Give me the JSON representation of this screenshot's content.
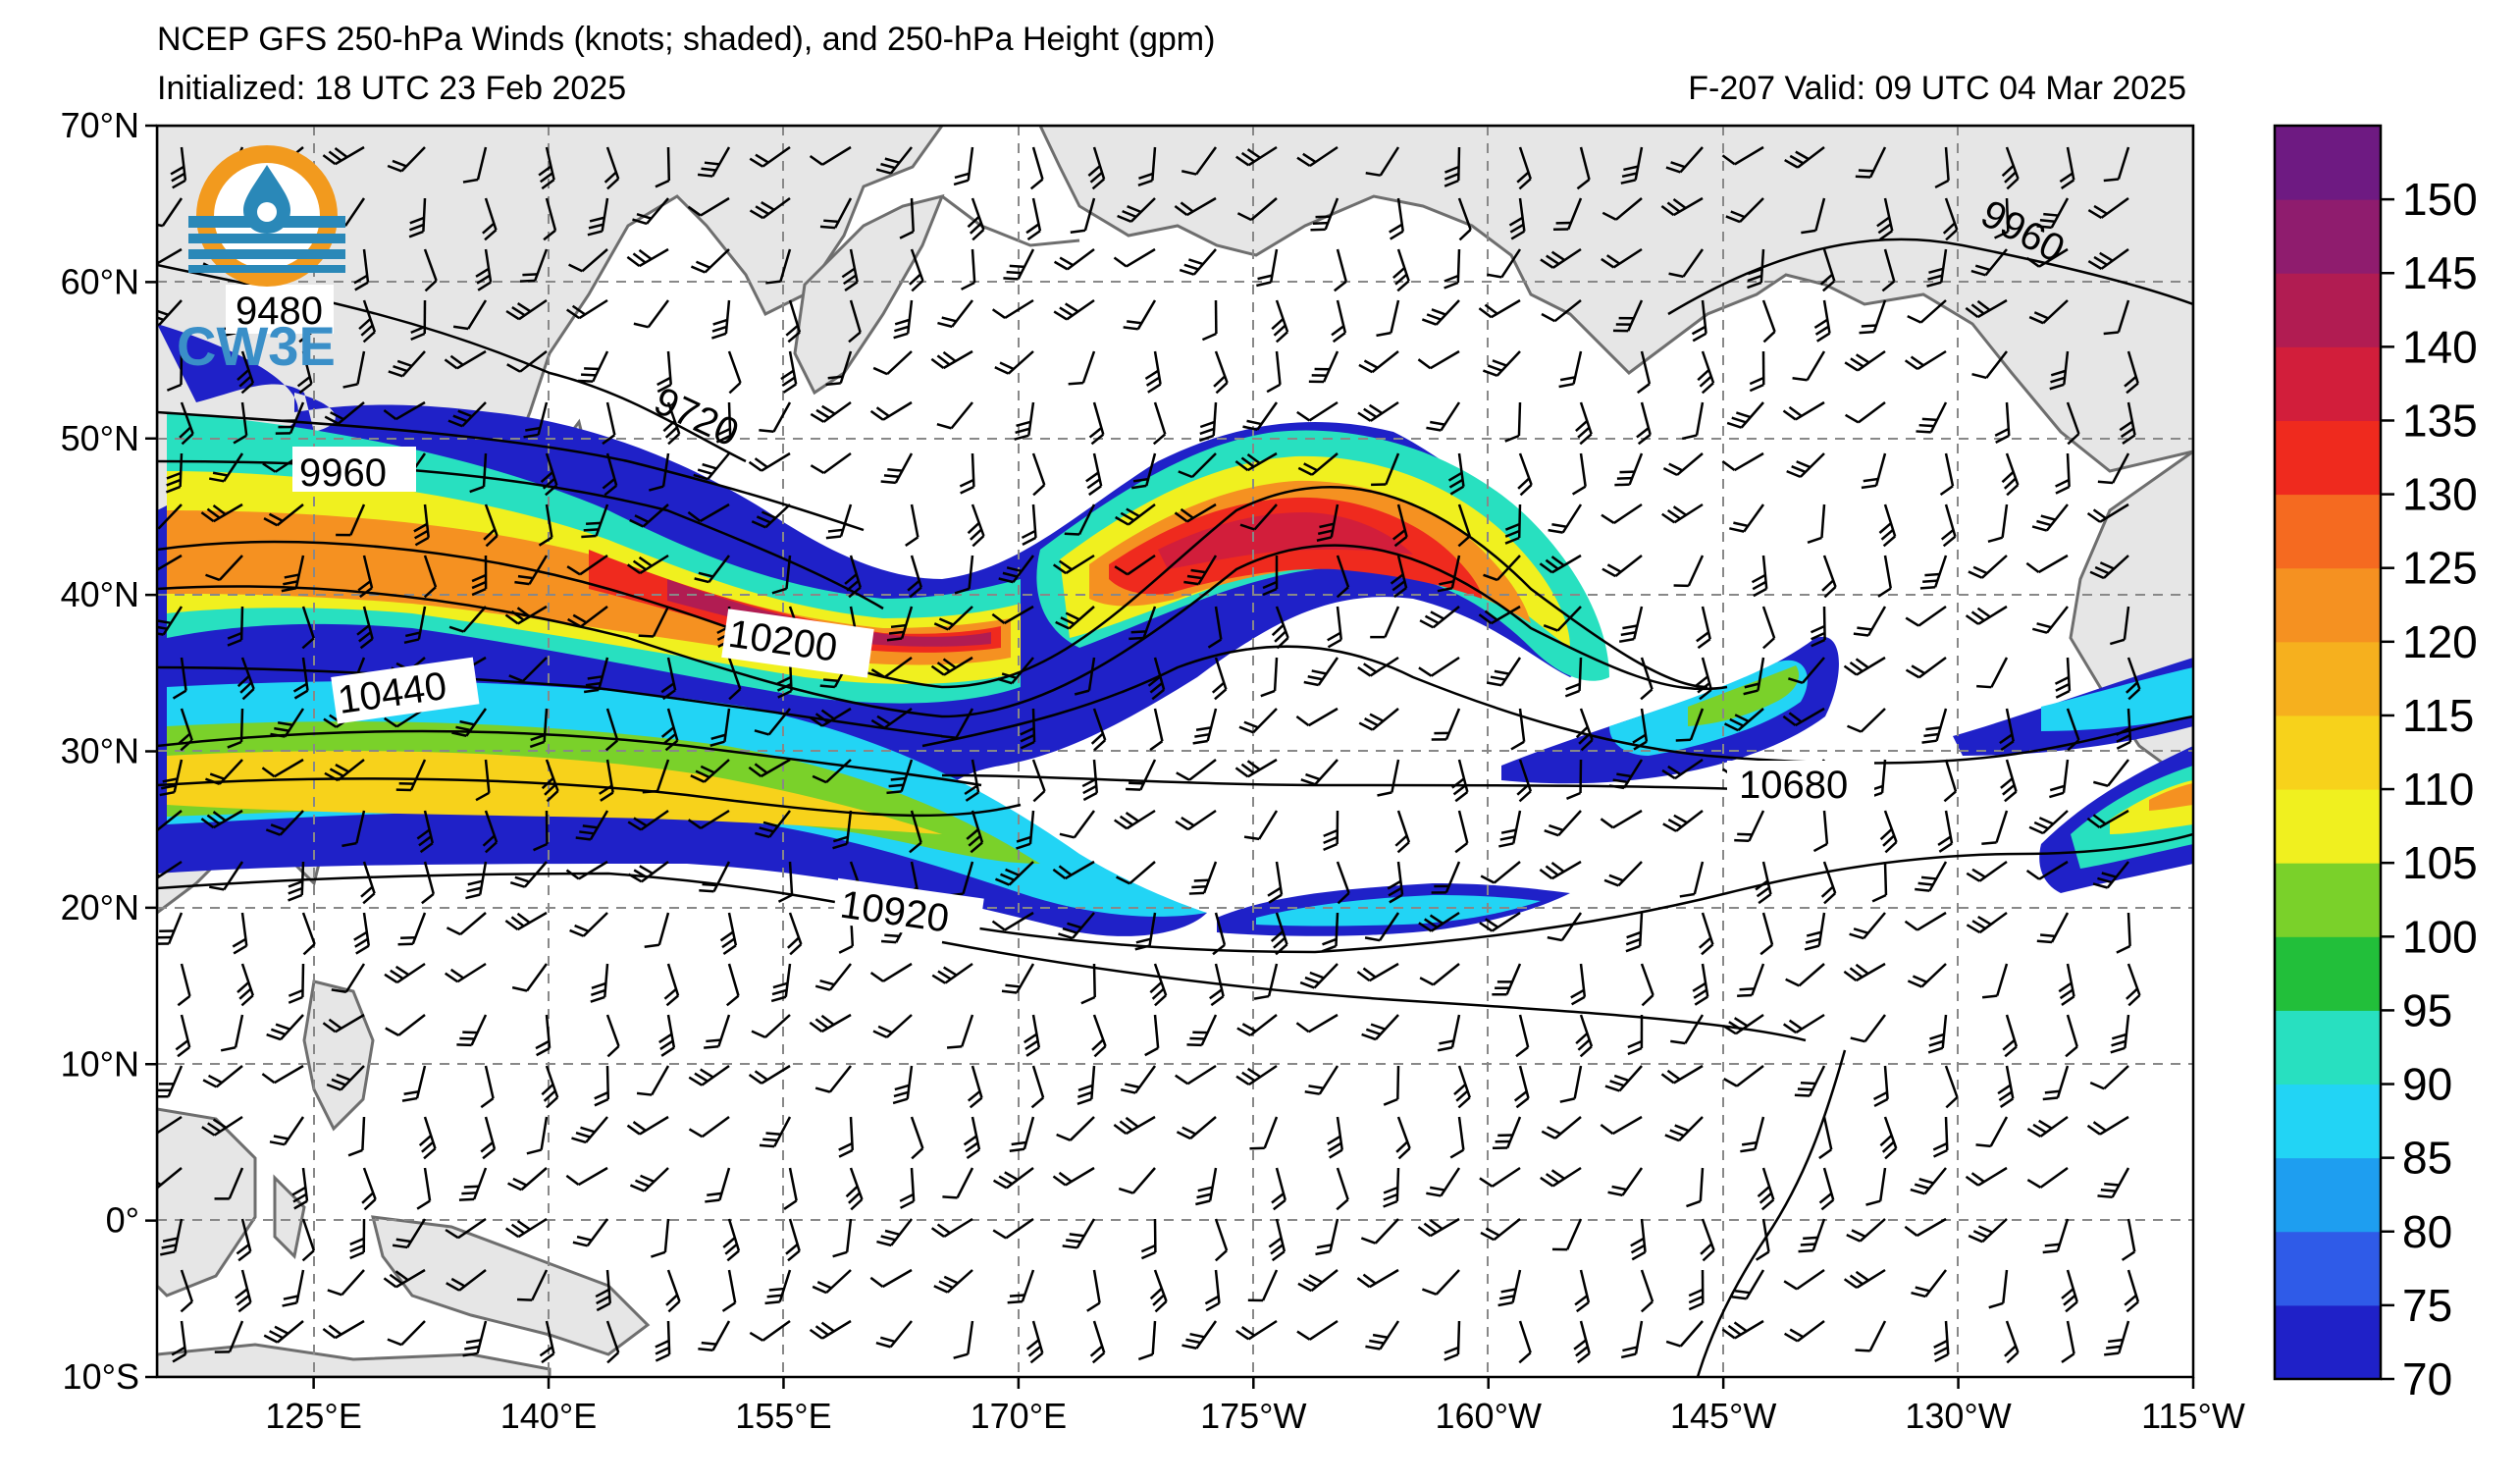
{
  "title": {
    "line1": "NCEP GFS 250-hPa Winds (knots; shaded), and 250-hPa Height (gpm)",
    "line2": "Initialized: 18 UTC 23 Feb 2025",
    "valid": "F-207  Valid: 09 UTC 04 Mar 2025"
  },
  "logo": {
    "text": "CW3E"
  },
  "axes": {
    "lat_labels": [
      "70°N",
      "60°N",
      "50°N",
      "40°N",
      "30°N",
      "20°N",
      "10°N",
      "0°",
      "10°S"
    ],
    "lon_labels": [
      "125°E",
      "140°E",
      "155°E",
      "170°E",
      "175°W",
      "160°W",
      "145°W",
      "130°W",
      "115°W"
    ],
    "lat_range": [
      -10,
      70
    ],
    "lon_range_east": [
      115,
      245
    ]
  },
  "colorbar": {
    "labels": [
      "150",
      "145",
      "140",
      "135",
      "130",
      "125",
      "120",
      "115",
      "110",
      "105",
      "100",
      "95",
      "90",
      "85",
      "80",
      "75",
      "70"
    ],
    "levels": [
      70,
      75,
      80,
      85,
      90,
      95,
      100,
      105,
      110,
      115,
      120,
      125,
      130,
      135,
      140,
      145,
      150,
      155
    ],
    "colors": [
      "#1f21c8",
      "#2f5be8",
      "#1e9ef0",
      "#22d4f5",
      "#28e0c0",
      "#22bf3a",
      "#7ad12a",
      "#f0f01f",
      "#f7d21b",
      "#f6b01e",
      "#f59121",
      "#f56a20",
      "#ef2a1e",
      "#d21e3b",
      "#b11c52",
      "#8f1c6e",
      "#6e1a82"
    ]
  },
  "contours": {
    "labels": [
      "9480",
      "9720",
      "9960",
      "9960",
      "10200",
      "10440",
      "10680",
      "10920"
    ]
  }
}
